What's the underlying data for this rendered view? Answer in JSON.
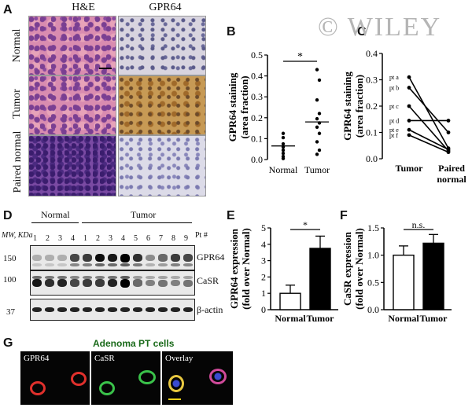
{
  "watermark": "© WILEY",
  "panels": {
    "A": "A",
    "B": "B",
    "C": "C",
    "D": "D",
    "E": "E",
    "F": "F",
    "G": "G"
  },
  "panel_a": {
    "col_headers": [
      "H&E",
      "GPR64"
    ],
    "row_labels": [
      "Normal",
      "Tumor",
      "Paired normal"
    ]
  },
  "panel_d": {
    "group_normal": "Normal",
    "group_tumor": "Tumor",
    "mw_label": "MW, KDa",
    "pt_label": "Pt #",
    "lanes_normal": [
      "1",
      "2",
      "3",
      "4"
    ],
    "lanes_tumor": [
      "1",
      "2",
      "3",
      "4",
      "5",
      "6",
      "7",
      "8",
      "9"
    ],
    "mw_markers": [
      "150",
      "100",
      "37"
    ],
    "bands": [
      "GPR64",
      "CaSR",
      "β-actin"
    ]
  },
  "panel_g": {
    "title": "Adenoma PT cells",
    "labels": [
      "GPR64",
      "CaSR",
      "Overlay"
    ]
  },
  "colors": {
    "red_cell": "#e0302c",
    "green_cell": "#3ac24a",
    "blue_nucleus": "#3a4bd0",
    "scalebar": "#f2d21a"
  },
  "chart_data": [
    {
      "id": "B",
      "type": "scatter",
      "ylabel": "GPR64 staining (area fraction)",
      "categories": [
        "Normal",
        "Tumor"
      ],
      "ylim": [
        0,
        0.5
      ],
      "yticks": [
        "0.0",
        "0.1",
        "0.2",
        "0.3",
        "0.4",
        "0.5"
      ],
      "series": [
        {
          "category": "Normal",
          "values": [
            0.125,
            0.105,
            0.075,
            0.06,
            0.045,
            0.03,
            0.015,
            0.005
          ],
          "mean": 0.065
        },
        {
          "category": "Tumor",
          "values": [
            0.43,
            0.38,
            0.285,
            0.22,
            0.195,
            0.175,
            0.155,
            0.125,
            0.085,
            0.045,
            0.025
          ],
          "mean": 0.18
        }
      ],
      "significance": "*"
    },
    {
      "id": "C",
      "type": "line",
      "ylabel": "GPR64 staining (area fraction)",
      "categories": [
        "Tumor",
        "Paired normal"
      ],
      "ylim": [
        0,
        0.4
      ],
      "yticks": [
        "0.0",
        "0.1",
        "0.2",
        "0.3",
        "0.4"
      ],
      "series": [
        {
          "name": "pt a",
          "values": [
            0.31,
            0.04
          ]
        },
        {
          "name": "pt b",
          "values": [
            0.27,
            0.1
          ]
        },
        {
          "name": "pt c",
          "values": [
            0.2,
            0.03
          ]
        },
        {
          "name": "pt d",
          "values": [
            0.145,
            0.145
          ]
        },
        {
          "name": "pt e",
          "values": [
            0.11,
            0.035
          ]
        },
        {
          "name": "pt f",
          "values": [
            0.09,
            0.025
          ]
        }
      ]
    },
    {
      "id": "E",
      "type": "bar",
      "ylabel": "GPR64 expression (fold over Normal)",
      "categories": [
        "Normal",
        "Tumor"
      ],
      "values": [
        1.0,
        3.75
      ],
      "errors": [
        0.5,
        0.75
      ],
      "fills": [
        "#ffffff",
        "#000000"
      ],
      "ylim": [
        0,
        5
      ],
      "yticks": [
        "0",
        "1",
        "2",
        "3",
        "4",
        "5"
      ],
      "significance": "*"
    },
    {
      "id": "F",
      "type": "bar",
      "ylabel": "CaSR expression (fold over Normal)",
      "categories": [
        "Normal",
        "Tumor"
      ],
      "values": [
        1.0,
        1.22
      ],
      "errors": [
        0.17,
        0.16
      ],
      "fills": [
        "#ffffff",
        "#000000"
      ],
      "ylim": [
        0,
        1.5
      ],
      "yticks": [
        "0.0",
        "0.5",
        "1.0",
        "1.5"
      ],
      "significance": "n.s."
    }
  ]
}
